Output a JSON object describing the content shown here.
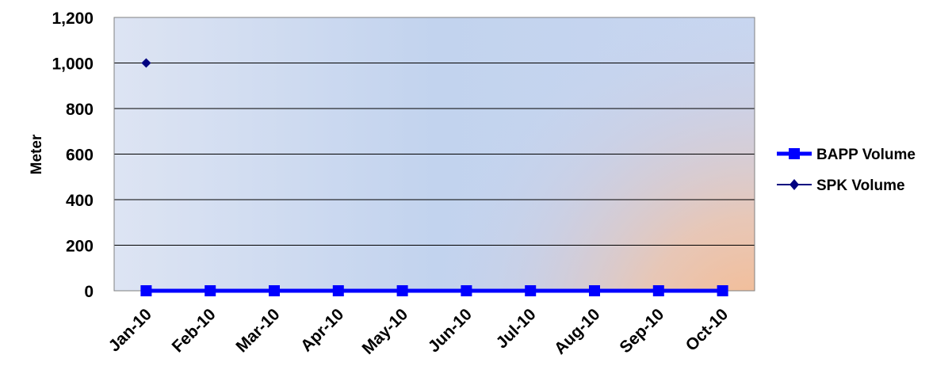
{
  "chart_data": {
    "type": "line",
    "categories": [
      "Jan-10",
      "Feb-10",
      "Mar-10",
      "Apr-10",
      "May-10",
      "Jun-10",
      "Jul-10",
      "Aug-10",
      "Sep-10",
      "Oct-10"
    ],
    "ylabel": "Meter",
    "xlabel": "",
    "ylim": [
      0,
      1200
    ],
    "yticks": [
      0,
      200,
      400,
      600,
      800,
      1000,
      1200
    ],
    "ytick_labels": [
      "0",
      "200",
      "400",
      "600",
      "800",
      "1,000",
      "1,200"
    ],
    "grid": true,
    "legend_position": "right",
    "series": [
      {
        "name": "BAPP Volume",
        "color": "#0000ff",
        "marker": "square",
        "values": [
          0,
          0,
          0,
          0,
          0,
          0,
          0,
          0,
          0,
          0
        ]
      },
      {
        "name": "SPK Volume",
        "color": "#000080",
        "marker": "diamond",
        "values": [
          1000,
          null,
          null,
          null,
          null,
          null,
          null,
          null,
          null,
          null
        ]
      }
    ]
  }
}
